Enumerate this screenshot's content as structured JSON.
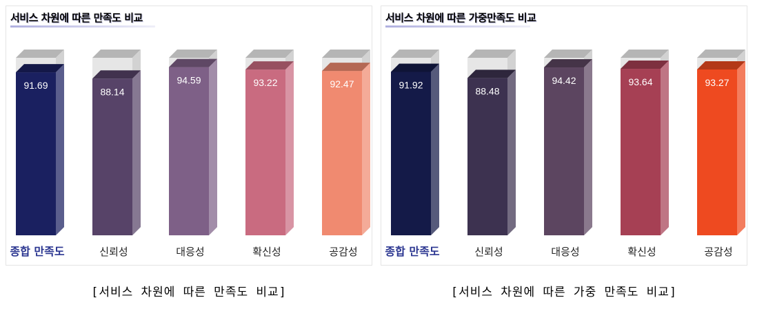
{
  "captions": {
    "left": "[서비스 차원에 따른 만족도 비교]",
    "right": "[서비스 차원에 따른 가중 만족도 비교]"
  },
  "chart_data": [
    {
      "type": "bar",
      "title": "서비스 차원에 따른 만족도 비교",
      "categories": [
        "종합 만족도",
        "신뢰성",
        "대응성",
        "확신성",
        "공감성"
      ],
      "values": [
        91.69,
        88.14,
        94.59,
        93.22,
        92.47
      ],
      "colors": [
        "#1a2060",
        "#574368",
        "#7e6087",
        "#c96b80",
        "#f08a70"
      ],
      "highlight_category": "종합 만족도",
      "highlight_color": "#2a3590"
    },
    {
      "type": "bar",
      "title": "서비스 차원에 따른 가중만족도 비교",
      "categories": [
        "종합 만족도",
        "신뢰성",
        "대응성",
        "확신성",
        "공감성"
      ],
      "values": [
        91.92,
        88.48,
        94.42,
        93.64,
        93.27
      ],
      "colors": [
        "#141a48",
        "#3d3250",
        "#5c4560",
        "#a64054",
        "#ee4a20"
      ],
      "highlight_category": "종합 만족도",
      "highlight_color": "#2a3590"
    }
  ]
}
